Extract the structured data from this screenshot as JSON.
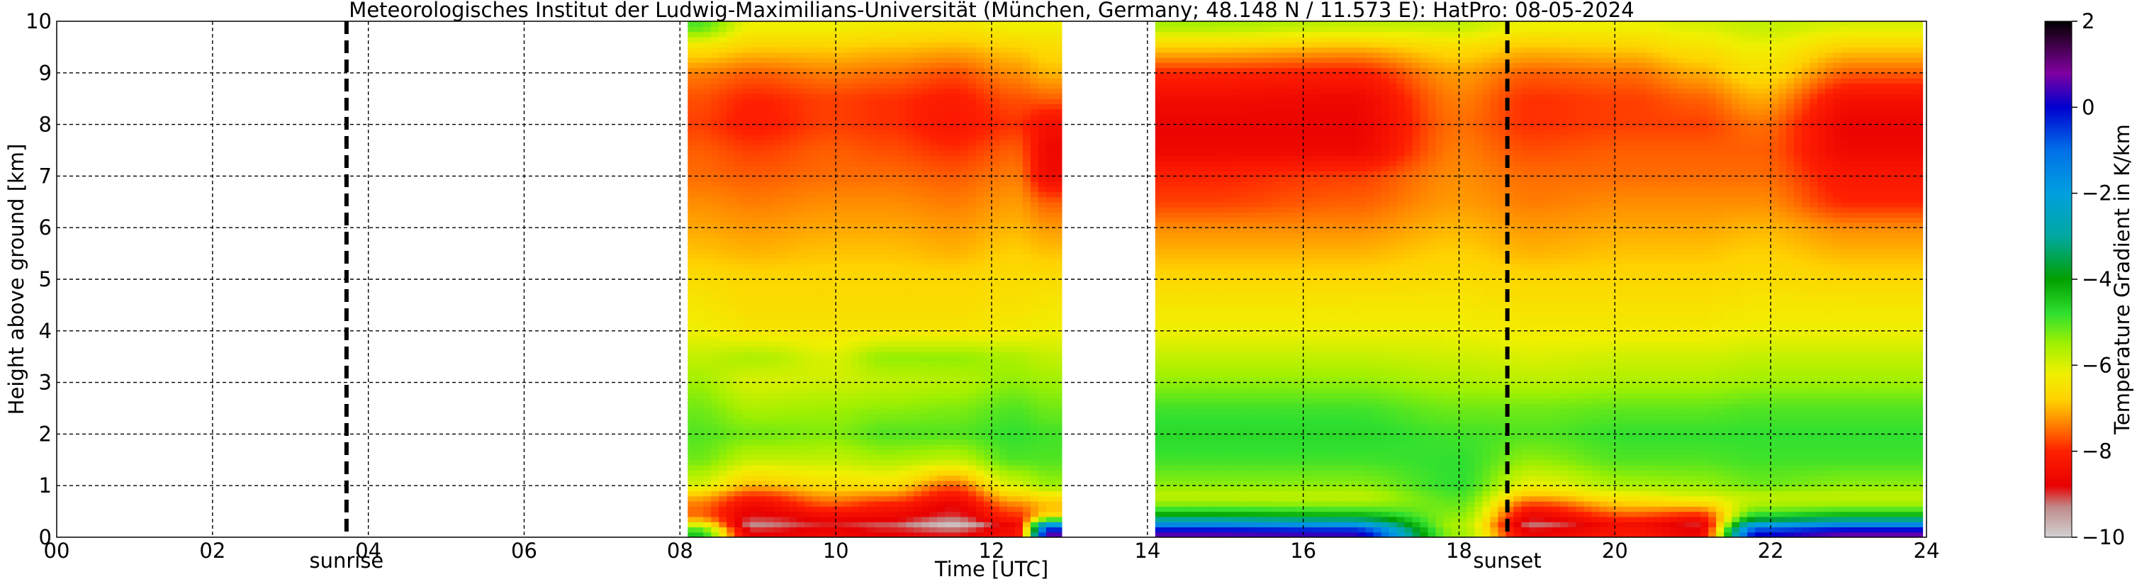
{
  "chart_data": {
    "type": "heatmap",
    "title": "Meteorologisches Institut der Ludwig-Maximilians-Universität (München, Germany; 48.148 N / 11.573 E):    HatPro: 08-05-2024",
    "xlabel": "Time [UTC]",
    "ylabel": "Height above ground [km]",
    "xlim": [
      0,
      24
    ],
    "ylim": [
      0,
      10
    ],
    "x_ticks": [
      "00",
      "02",
      "04",
      "06",
      "08",
      "10",
      "12",
      "14",
      "16",
      "18",
      "20",
      "22",
      "24"
    ],
    "y_ticks": [
      "0",
      "1",
      "2",
      "3",
      "4",
      "5",
      "6",
      "7",
      "8",
      "9",
      "10"
    ],
    "grid": true,
    "colorbar": {
      "label": "Temperature Gradient in K/km",
      "range": [
        -10,
        2
      ],
      "ticks": [
        "2",
        "0",
        "−2",
        "−4",
        "−6",
        "−8",
        "−10"
      ],
      "stops": [
        {
          "value": -10,
          "color": "#d2d2d2"
        },
        {
          "value": -9.3,
          "color": "#c08a8a"
        },
        {
          "value": -8.8,
          "color": "#e80000"
        },
        {
          "value": -8.0,
          "color": "#ff2000"
        },
        {
          "value": -7.3,
          "color": "#ff8c00"
        },
        {
          "value": -6.8,
          "color": "#ffd200"
        },
        {
          "value": -6.2,
          "color": "#f0f000"
        },
        {
          "value": -5.5,
          "color": "#a0f000"
        },
        {
          "value": -4.8,
          "color": "#30e030"
        },
        {
          "value": -4.0,
          "color": "#00a000"
        },
        {
          "value": -3.0,
          "color": "#00a8a0"
        },
        {
          "value": -2.0,
          "color": "#00a0e0"
        },
        {
          "value": -1.0,
          "color": "#0070e8"
        },
        {
          "value": 0.0,
          "color": "#0000d0"
        },
        {
          "value": 0.8,
          "color": "#8000a0"
        },
        {
          "value": 1.5,
          "color": "#3a0040"
        },
        {
          "value": 2.0,
          "color": "#000000"
        }
      ]
    },
    "markers": [
      {
        "label": "sunrise",
        "x": 3.72
      },
      {
        "label": "sunset",
        "x": 18.62
      }
    ],
    "data_blocks": [
      {
        "x_start": 8.1,
        "x_end": 12.9
      },
      {
        "x_start": 14.1,
        "x_end": 23.95
      }
    ],
    "heights_km": [
      0.1,
      0.25,
      0.4,
      0.6,
      0.8,
      1.0,
      1.5,
      2.0,
      2.5,
      3.0,
      3.5,
      4.0,
      4.5,
      5.0,
      5.5,
      6.0,
      6.5,
      7.0,
      7.5,
      8.0,
      8.5,
      9.0,
      9.5,
      9.9
    ],
    "profiles": [
      {
        "x_start": 8.1,
        "x_end": 8.3,
        "values": [
          -4.5,
          -6.0,
          -7.5,
          -7.5,
          -7.0,
          -6.0,
          -5.2,
          -5.0,
          -5.2,
          -5.5,
          -5.8,
          -6.2,
          -6.4,
          -6.6,
          -6.9,
          -7.1,
          -7.3,
          -7.5,
          -7.6,
          -7.8,
          -7.7,
          -7.4,
          -6.5,
          -5.0
        ]
      },
      {
        "x_start": 8.3,
        "x_end": 9.6,
        "values": [
          -8.8,
          -9.3,
          -8.9,
          -8.6,
          -8.0,
          -7.0,
          -5.8,
          -5.2,
          -5.6,
          -6.0,
          -5.6,
          -6.4,
          -6.6,
          -6.7,
          -7.0,
          -7.2,
          -7.4,
          -7.6,
          -7.8,
          -8.1,
          -8.0,
          -7.6,
          -6.8,
          -6.2
        ]
      },
      {
        "x_start": 9.6,
        "x_end": 10.3,
        "values": [
          -8.6,
          -8.9,
          -8.6,
          -7.8,
          -7.2,
          -6.6,
          -5.8,
          -5.3,
          -5.5,
          -5.9,
          -6.0,
          -6.4,
          -6.6,
          -6.7,
          -6.9,
          -7.1,
          -7.3,
          -7.5,
          -7.6,
          -7.8,
          -7.8,
          -7.4,
          -6.8,
          -6.2
        ]
      },
      {
        "x_start": 10.3,
        "x_end": 11.0,
        "values": [
          -8.8,
          -9.1,
          -8.6,
          -8.2,
          -7.4,
          -6.6,
          -5.6,
          -5.0,
          -5.4,
          -5.8,
          -5.4,
          -6.4,
          -6.6,
          -6.7,
          -6.9,
          -7.1,
          -7.3,
          -7.5,
          -7.7,
          -7.9,
          -7.9,
          -7.5,
          -6.9,
          -6.3
        ]
      },
      {
        "x_start": 11.0,
        "x_end": 12.0,
        "values": [
          -8.9,
          -9.8,
          -9.0,
          -8.8,
          -8.3,
          -7.6,
          -5.8,
          -5.0,
          -5.3,
          -5.7,
          -5.4,
          -6.4,
          -6.6,
          -6.7,
          -7.0,
          -7.2,
          -7.4,
          -7.6,
          -7.9,
          -8.2,
          -8.1,
          -7.7,
          -7.0,
          -6.4
        ]
      },
      {
        "x_start": 12.0,
        "x_end": 12.6,
        "values": [
          -8.4,
          -8.6,
          -8.0,
          -7.5,
          -6.8,
          -6.0,
          -5.0,
          -4.8,
          -5.0,
          -5.4,
          -5.6,
          -6.3,
          -6.5,
          -6.6,
          -6.8,
          -7.0,
          -7.2,
          -7.4,
          -7.6,
          -7.9,
          -7.7,
          -7.3,
          -6.8,
          -6.2
        ]
      },
      {
        "x_start": 12.6,
        "x_end": 12.9,
        "values": [
          0.5,
          -2.0,
          -6.5,
          -7.0,
          -6.5,
          -5.5,
          -5.0,
          -4.9,
          -5.2,
          -5.5,
          -5.8,
          -6.2,
          -6.4,
          -6.6,
          -6.9,
          -7.2,
          -7.6,
          -8.5,
          -8.6,
          -8.4,
          -7.6,
          -7.0,
          -6.6,
          -6.2
        ]
      },
      {
        "x_start": 14.1,
        "x_end": 15.3,
        "values": [
          0.5,
          -1.5,
          -3.8,
          -5.2,
          -5.8,
          -5.4,
          -4.9,
          -4.7,
          -4.9,
          -5.4,
          -5.8,
          -6.2,
          -6.4,
          -6.7,
          -7.0,
          -7.3,
          -7.8,
          -8.0,
          -8.6,
          -8.7,
          -8.5,
          -8.0,
          -6.8,
          -5.6
        ]
      },
      {
        "x_start": 15.3,
        "x_end": 17.9,
        "values": [
          0.3,
          -1.8,
          -4.0,
          -5.3,
          -5.8,
          -5.4,
          -4.9,
          -4.7,
          -4.9,
          -5.4,
          -5.8,
          -6.2,
          -6.4,
          -6.7,
          -7.0,
          -7.3,
          -7.6,
          -7.8,
          -8.6,
          -8.7,
          -8.6,
          -8.1,
          -7.0,
          -5.8
        ]
      },
      {
        "x_start": 17.9,
        "x_end": 18.1,
        "values": [
          -5.5,
          -5.6,
          -5.4,
          -5.2,
          -5.0,
          -4.8,
          -4.8,
          -4.9,
          -5.2,
          -5.6,
          -5.9,
          -6.2,
          -6.4,
          -6.6,
          -6.8,
          -7.0,
          -7.2,
          -7.3,
          -7.4,
          -7.5,
          -7.4,
          -7.2,
          -6.6,
          -5.8
        ]
      },
      {
        "x_start": 18.1,
        "x_end": 19.8,
        "values": [
          -8.7,
          -9.2,
          -8.7,
          -8.0,
          -7.0,
          -6.2,
          -5.4,
          -5.0,
          -5.2,
          -5.7,
          -6.0,
          -6.3,
          -6.5,
          -6.7,
          -7.0,
          -7.2,
          -7.4,
          -7.5,
          -7.7,
          -7.9,
          -7.9,
          -7.6,
          -6.9,
          -6.2
        ]
      },
      {
        "x_start": 19.8,
        "x_end": 20.6,
        "values": [
          -8.2,
          -8.4,
          -7.8,
          -7.0,
          -6.3,
          -5.6,
          -5.0,
          -4.8,
          -5.1,
          -5.6,
          -5.9,
          -6.3,
          -6.5,
          -6.7,
          -6.9,
          -7.1,
          -7.3,
          -7.5,
          -7.6,
          -7.8,
          -7.8,
          -7.5,
          -6.8,
          -6.2
        ]
      },
      {
        "x_start": 20.6,
        "x_end": 21.5,
        "values": [
          -8.7,
          -8.9,
          -8.2,
          -7.0,
          -6.0,
          -5.5,
          -5.0,
          -4.8,
          -5.1,
          -5.6,
          -5.9,
          -6.3,
          -6.5,
          -6.7,
          -6.9,
          -7.1,
          -7.3,
          -7.5,
          -7.6,
          -7.8,
          -7.6,
          -7.1,
          -6.5,
          -6.0
        ]
      },
      {
        "x_start": 21.5,
        "x_end": 22.2,
        "values": [
          0.0,
          -2.0,
          -4.5,
          -5.5,
          -5.8,
          -5.2,
          -4.9,
          -4.8,
          -5.0,
          -5.5,
          -5.8,
          -6.2,
          -6.4,
          -6.6,
          -6.8,
          -7.0,
          -7.3,
          -7.5,
          -7.6,
          -7.5,
          -7.1,
          -6.6,
          -6.2,
          -5.8
        ]
      },
      {
        "x_start": 22.2,
        "x_end": 23.95,
        "values": [
          0.6,
          -1.5,
          -4.0,
          -5.4,
          -5.8,
          -5.4,
          -4.9,
          -4.8,
          -5.0,
          -5.5,
          -5.8,
          -6.2,
          -6.4,
          -6.7,
          -7.0,
          -7.3,
          -8.0,
          -8.2,
          -8.6,
          -8.7,
          -8.4,
          -7.6,
          -6.8,
          -6.0
        ]
      }
    ]
  }
}
